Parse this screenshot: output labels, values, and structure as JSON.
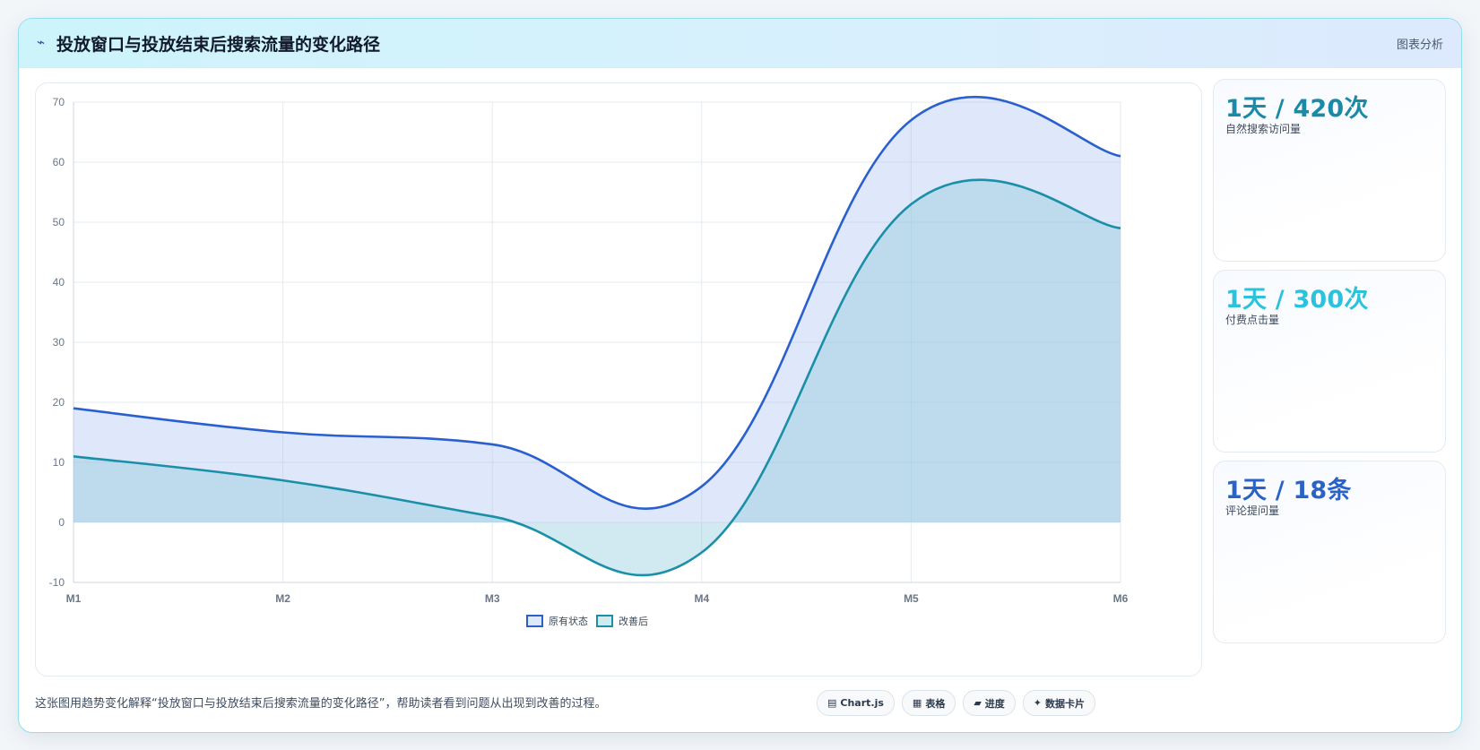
{
  "header": {
    "icon": "⌁",
    "title": "投放窗口与投放结束后搜索流量的变化路径",
    "tag": "图表分析"
  },
  "stats": [
    {
      "value": "1天 / 420次",
      "label": "自然搜索访问量",
      "color": "#1a8aa6"
    },
    {
      "value": "1天 / 300次",
      "label": "付费点击量",
      "color": "#2cc2dc"
    },
    {
      "value": "1天 / 18条",
      "label": "评论提问量",
      "color": "#2a63c8"
    }
  ],
  "footer": {
    "text": "这张图用趋势变化解释“投放窗口与投放结束后搜索流量的变化路径”，帮助读者看到问题从出现到改善的过程。",
    "chips": [
      {
        "icon": "▤",
        "label": "Chart.js"
      },
      {
        "icon": "▦",
        "label": "表格"
      },
      {
        "icon": "▰",
        "label": "进度"
      },
      {
        "icon": "✦",
        "label": "数据卡片"
      }
    ]
  },
  "chart_data": {
    "type": "area",
    "categories": [
      "M1",
      "M2",
      "M3",
      "M4",
      "M5",
      "M6"
    ],
    "series": [
      {
        "name": "原有状态",
        "values": [
          19,
          15,
          13,
          6,
          67,
          61
        ],
        "color": "#2a5fcf",
        "fill": "rgba(150,180,240,0.30)"
      },
      {
        "name": "改善后",
        "values": [
          11,
          7,
          1,
          -5,
          53,
          49
        ],
        "color": "#1a8fa8",
        "fill": "rgba(140,200,220,0.40)"
      }
    ],
    "ylim": [
      -10,
      70
    ],
    "yticks": [
      -10,
      0,
      10,
      20,
      30,
      40,
      50,
      60,
      70
    ],
    "grid": true,
    "legend": "bottom"
  }
}
